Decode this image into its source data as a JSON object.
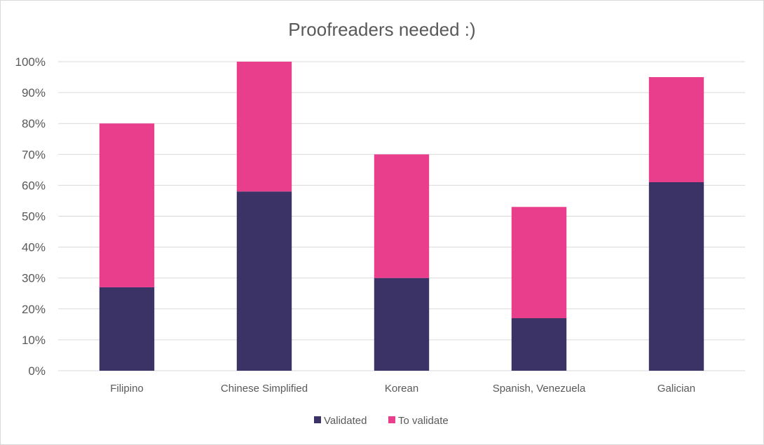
{
  "chart_data": {
    "type": "bar",
    "stacked": true,
    "title": "Proofreaders needed :)",
    "xlabel": "",
    "ylabel": "",
    "ylim": [
      0,
      100
    ],
    "y_ticks": [
      "0%",
      "10%",
      "20%",
      "30%",
      "40%",
      "50%",
      "60%",
      "70%",
      "80%",
      "90%",
      "100%"
    ],
    "categories": [
      "Filipino",
      "Chinese Simplified",
      "Korean",
      "Spanish, Venezuela",
      "Galician"
    ],
    "series": [
      {
        "name": "Validated",
        "color": "#3b3366",
        "values": [
          27,
          58,
          30,
          17,
          61
        ]
      },
      {
        "name": "To validate",
        "color": "#e83e8c",
        "values": [
          53,
          42,
          40,
          36,
          34
        ]
      }
    ],
    "grid": true,
    "legend_position": "bottom"
  }
}
